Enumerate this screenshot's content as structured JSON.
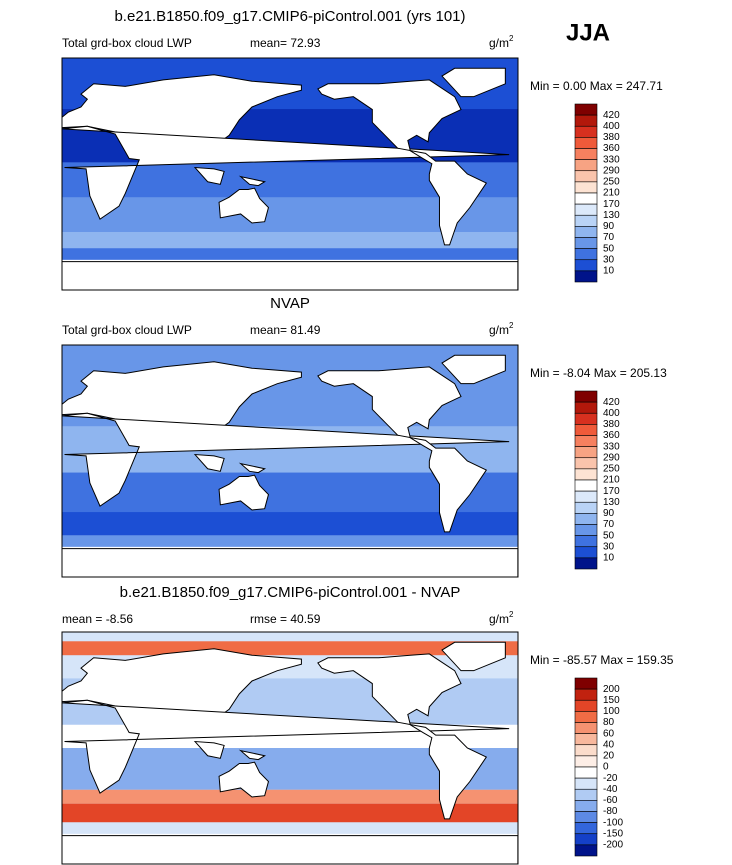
{
  "header": {
    "season": "JJA"
  },
  "panels": [
    {
      "title": "b.e21.B1850.f09_g17.CMIP6-piControl.001 (yrs 101)",
      "left_label": "Total grd-box cloud LWP",
      "center_label": "mean=  72.93",
      "units": {
        "base": "g/m",
        "exponent": "2"
      },
      "minmax": "Min =   0.00 Max = 247.71",
      "colorbar": {
        "labels": [
          "420",
          "400",
          "380",
          "360",
          "330",
          "290",
          "250",
          "210",
          "170",
          "130",
          "90",
          "70",
          "50",
          "30",
          "10"
        ],
        "colors": [
          "#7f0000",
          "#b2180b",
          "#d7301f",
          "#ef5a3a",
          "#f6805f",
          "#f7a383",
          "#fac4ac",
          "#fde3d3",
          "#ffffff",
          "#dce9fa",
          "#b9d3f6",
          "#8fb5ef",
          "#6896e8",
          "#3f72e0",
          "#1c4fd4",
          "#00138a"
        ]
      }
    },
    {
      "title": "NVAP",
      "left_label": "Total grd-box cloud LWP",
      "center_label": "mean=  81.49",
      "units": {
        "base": "g/m",
        "exponent": "2"
      },
      "minmax": "Min =  -8.04 Max = 205.13",
      "colorbar": {
        "labels": [
          "420",
          "400",
          "380",
          "360",
          "330",
          "290",
          "250",
          "210",
          "170",
          "130",
          "90",
          "70",
          "50",
          "30",
          "10"
        ],
        "colors": [
          "#7f0000",
          "#b2180b",
          "#d7301f",
          "#ef5a3a",
          "#f6805f",
          "#f7a383",
          "#fac4ac",
          "#fde3d3",
          "#ffffff",
          "#dce9fa",
          "#b9d3f6",
          "#8fb5ef",
          "#6896e8",
          "#3f72e0",
          "#1c4fd4",
          "#00138a"
        ]
      }
    },
    {
      "title": "b.e21.B1850.f09_g17.CMIP6-piControl.001 - NVAP",
      "left_label": "mean =  -8.56",
      "center_label": "rmse =  40.59",
      "units": {
        "base": "g/m",
        "exponent": "2"
      },
      "minmax": "Min = -85.57 Max = 159.35",
      "colorbar": {
        "labels": [
          "200",
          "150",
          "100",
          "80",
          "60",
          "40",
          "20",
          "0",
          "-20",
          "-40",
          "-60",
          "-80",
          "-100",
          "-150",
          "-200"
        ],
        "colors": [
          "#7f0000",
          "#c1220f",
          "#e34527",
          "#f06c45",
          "#f59271",
          "#f8b89d",
          "#fbdccb",
          "#fdeee6",
          "#ffffff",
          "#d6e5f9",
          "#b0cbf3",
          "#86aced",
          "#5d8ae5",
          "#3366dc",
          "#1440c8",
          "#00138a"
        ]
      }
    }
  ]
}
